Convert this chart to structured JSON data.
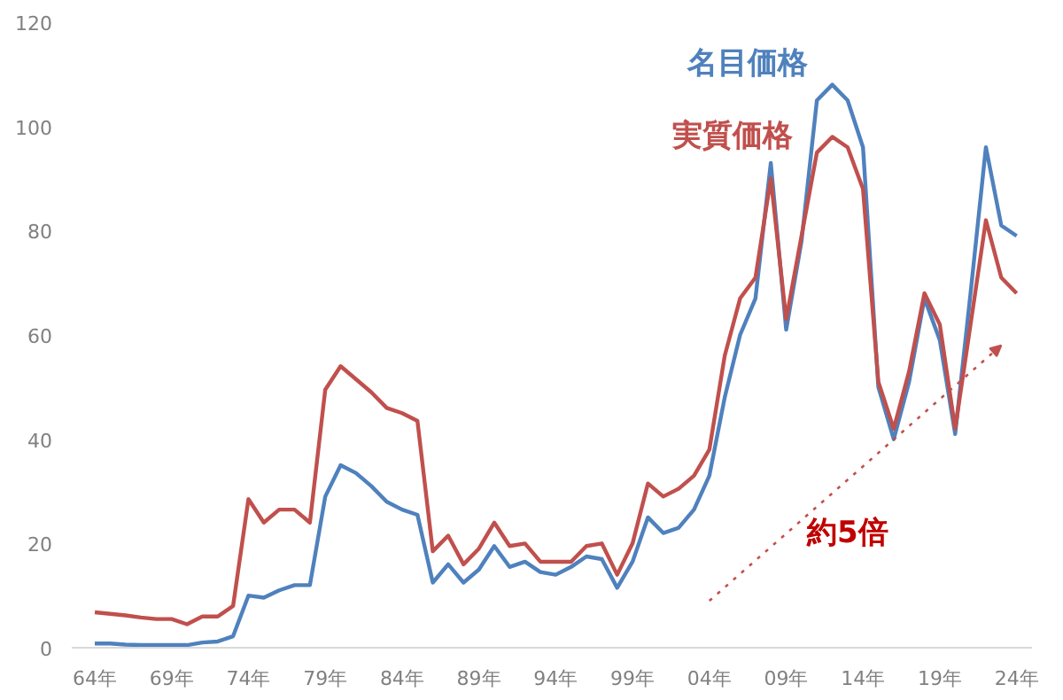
{
  "chart_data": {
    "type": "line",
    "categories": [
      "64年",
      null,
      null,
      null,
      null,
      "69年",
      null,
      null,
      null,
      null,
      "74年",
      null,
      null,
      null,
      null,
      "79年",
      null,
      null,
      null,
      null,
      "84年",
      null,
      null,
      null,
      null,
      "89年",
      null,
      null,
      null,
      null,
      "94年",
      null,
      null,
      null,
      null,
      "99年",
      null,
      null,
      null,
      null,
      "04年",
      null,
      null,
      null,
      null,
      "09年",
      null,
      null,
      null,
      null,
      "14年",
      null,
      null,
      null,
      null,
      "19年",
      null,
      null,
      null,
      null,
      "24年"
    ],
    "series": [
      {
        "name": "名目価格",
        "color": "#4f81bd",
        "values": [
          0.8,
          0.8,
          0.6,
          0.5,
          0.5,
          0.5,
          0.5,
          1.0,
          1.2,
          2.2,
          10,
          9.6,
          11,
          12,
          12,
          29,
          35,
          33.5,
          31,
          28,
          26.5,
          25.5,
          12.5,
          16,
          12.5,
          15,
          19.5,
          15.5,
          16.5,
          14.5,
          14,
          15.5,
          17.5,
          17,
          11.5,
          16.5,
          25,
          22,
          23,
          26.5,
          33,
          48,
          60,
          67,
          93,
          61,
          78,
          105,
          108,
          105,
          96,
          50,
          40,
          51,
          67,
          59,
          41,
          68,
          96,
          81,
          79
        ]
      },
      {
        "name": "実質価格",
        "color": "#c0504d",
        "values": [
          6.8,
          6.5,
          6.2,
          5.8,
          5.5,
          5.5,
          4.5,
          6,
          6,
          8,
          28.5,
          24,
          26.5,
          26.5,
          24,
          49.5,
          54,
          51.5,
          49,
          46,
          45,
          43.5,
          18.5,
          21.5,
          16,
          19,
          24,
          19.5,
          20,
          16.5,
          16.5,
          16.5,
          19.5,
          20,
          14,
          20,
          31.5,
          29,
          30.5,
          33,
          38,
          56,
          67,
          71,
          90,
          63,
          79,
          95,
          98,
          96,
          88,
          51,
          42,
          53,
          68,
          62,
          42,
          62,
          82,
          71,
          68
        ]
      }
    ],
    "ylim": [
      0,
      120
    ],
    "yticks": [
      0,
      20,
      40,
      60,
      80,
      100,
      120
    ],
    "grid": false,
    "legend": false,
    "marker": "none",
    "line_style": "solid",
    "annotations": [
      "約5倍"
    ]
  }
}
